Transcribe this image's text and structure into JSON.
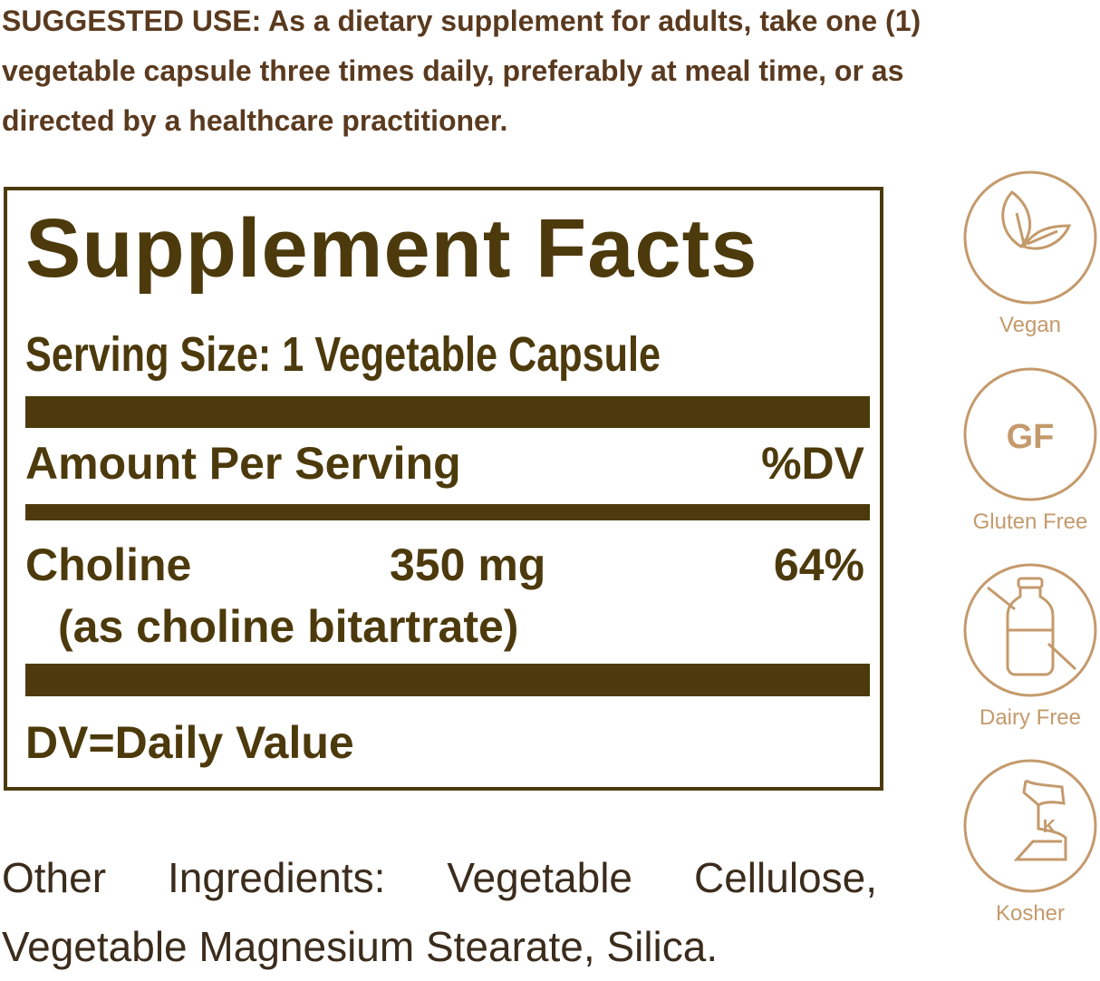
{
  "suggested_use": "SUGGESTED USE: As a dietary supplement for adults, take one (1) vegetable capsule three times daily, preferably at meal time, or as directed by a healthcare practitioner.",
  "facts": {
    "title": "Supplement Facts",
    "serving_size": "Serving Size: 1 Vegetable Capsule",
    "amount_header": "Amount Per Serving",
    "dv_header": "%DV",
    "nutrient": "Choline",
    "amount": "350 mg",
    "dv": "64%",
    "source": "(as choline bitartrate)",
    "footnote": "DV=Daily Value"
  },
  "other_ingredients": "Other Ingredients: Vegetable Cellulose, Vegetable Magnesium Stearate, Silica.",
  "badges": [
    {
      "icon": "leaf-icon",
      "label": "Vegan"
    },
    {
      "icon": "gf-icon",
      "text": "GF",
      "label": "Gluten Free"
    },
    {
      "icon": "no-milk-bottle-icon",
      "label": "Dairy Free"
    },
    {
      "icon": "kosher-k-icon",
      "text": "K",
      "label": "Kosher"
    }
  ],
  "colors": {
    "label_brown": "#4d3a0c",
    "badge_tan": "#c49a6c",
    "text_brown": "#5a3a1f"
  }
}
